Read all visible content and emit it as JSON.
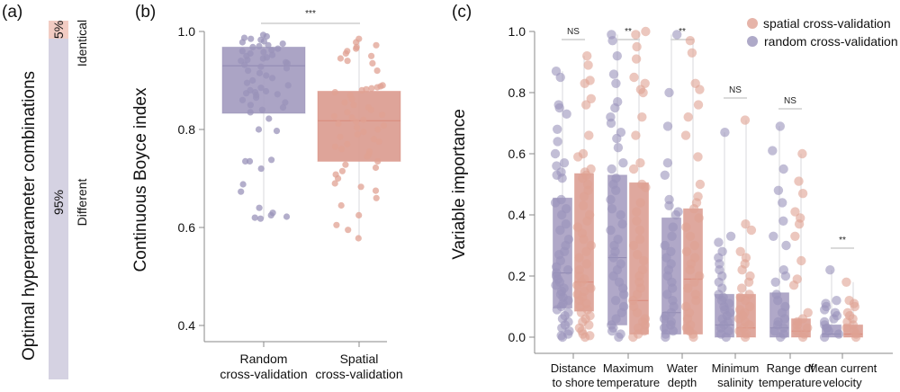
{
  "colors": {
    "random": "#8f87b0",
    "random_box": "#a79fc2",
    "random_point": "#9a93ba",
    "spatial": "#d9897a",
    "spatial_box": "#dc9f93",
    "spatial_point": "#e0a193",
    "bar_random": "#d5d2e2",
    "bar_spatial": "#f2ccc3"
  },
  "chart_data": [
    {
      "id": "a",
      "type": "bar",
      "panel_label": "(a)",
      "ylabel": "Optimal hyperparameter combinations",
      "orientation": "stacked-vertical",
      "segments": [
        {
          "name": "Identical",
          "value": 5,
          "label": "5%"
        },
        {
          "name": "Different",
          "value": 95,
          "label": "95%"
        }
      ]
    },
    {
      "id": "b",
      "type": "box",
      "panel_label": "(b)",
      "ylabel": "Continuous Boyce index",
      "ylim": [
        0.37,
        1.0
      ],
      "yticks": [
        1.0,
        0.8,
        0.6,
        0.4
      ],
      "ytick_labels": [
        "1.0",
        "0.8",
        "0.6",
        "0.4"
      ],
      "categories": [
        {
          "line1": "Random",
          "line2": "cross-validation"
        },
        {
          "line1": "Spatial",
          "line2": "cross-validation"
        }
      ],
      "significance": "***",
      "series": [
        {
          "name": "Random cross-validation",
          "q1": 0.833,
          "median": 0.93,
          "q3": 0.968,
          "whisker_low": 0.618,
          "whisker_high": 0.995,
          "points": [
            0.993,
            0.99,
            0.987,
            0.985,
            0.983,
            0.98,
            0.978,
            0.975,
            0.972,
            0.97,
            0.968,
            0.965,
            0.962,
            0.96,
            0.958,
            0.955,
            0.952,
            0.95,
            0.947,
            0.945,
            0.942,
            0.94,
            0.937,
            0.935,
            0.932,
            0.928,
            0.925,
            0.92,
            0.915,
            0.91,
            0.905,
            0.9,
            0.895,
            0.89,
            0.885,
            0.88,
            0.878,
            0.876,
            0.874,
            0.872,
            0.87,
            0.865,
            0.86,
            0.855,
            0.85,
            0.845,
            0.84,
            0.835,
            0.822,
            0.8,
            0.797,
            0.738,
            0.735,
            0.735,
            0.72,
            0.688,
            0.673,
            0.64,
            0.63,
            0.625,
            0.622,
            0.62,
            0.618
          ]
        },
        {
          "name": "Spatial cross-validation",
          "q1": 0.735,
          "median": 0.818,
          "q3": 0.878,
          "whisker_low": 0.578,
          "whisker_high": 0.985,
          "points": [
            0.985,
            0.978,
            0.972,
            0.968,
            0.965,
            0.96,
            0.955,
            0.95,
            0.945,
            0.94,
            0.935,
            0.92,
            0.89,
            0.888,
            0.886,
            0.884,
            0.882,
            0.88,
            0.876,
            0.87,
            0.862,
            0.855,
            0.85,
            0.845,
            0.84,
            0.835,
            0.83,
            0.827,
            0.824,
            0.82,
            0.816,
            0.812,
            0.808,
            0.804,
            0.8,
            0.795,
            0.79,
            0.785,
            0.78,
            0.775,
            0.77,
            0.765,
            0.76,
            0.755,
            0.75,
            0.745,
            0.735,
            0.728,
            0.722,
            0.715,
            0.708,
            0.7,
            0.69,
            0.683,
            0.675,
            0.66,
            0.645,
            0.625,
            0.605,
            0.595,
            0.578
          ]
        }
      ]
    },
    {
      "id": "c",
      "type": "box",
      "panel_label": "(c)",
      "ylabel": "Variable importance",
      "ylim": [
        -0.05,
        1.0
      ],
      "yticks": [
        1.0,
        0.8,
        0.6,
        0.4,
        0.2,
        0.0
      ],
      "ytick_labels": [
        "1.0",
        "0.8",
        "0.6",
        "0.4",
        "0.2",
        "0.0"
      ],
      "legend": {
        "position": "top-right",
        "entries": [
          "spatial cross-validation",
          "random cross-validation"
        ]
      },
      "categories": [
        {
          "line1": "Distance",
          "line2": "to shore",
          "significance": "NS",
          "random": {
            "q1": 0.095,
            "median": 0.21,
            "q3": 0.455,
            "whisker_high": 0.87,
            "points": [
              0.87,
              0.85,
              0.76,
              0.75,
              0.73,
              0.68,
              0.64,
              0.6,
              0.57,
              0.56,
              0.54,
              0.53,
              0.52,
              0.45,
              0.44,
              0.42,
              0.4,
              0.37,
              0.35,
              0.32,
              0.3,
              0.28,
              0.27,
              0.25,
              0.23,
              0.22,
              0.21,
              0.2,
              0.19,
              0.18,
              0.17,
              0.16,
              0.15,
              0.14,
              0.13,
              0.12,
              0.11,
              0.1,
              0.09,
              0.08,
              0.07,
              0.06,
              0.05,
              0.04,
              0.03,
              0.02,
              0.01,
              0.005,
              0.0
            ]
          },
          "spatial": {
            "q1": 0.085,
            "median": 0.18,
            "q3": 0.535,
            "whisker_high": 0.92,
            "points": [
              0.92,
              0.89,
              0.84,
              0.83,
              0.78,
              0.76,
              0.66,
              0.6,
              0.59,
              0.55,
              0.54,
              0.53,
              0.52,
              0.5,
              0.48,
              0.46,
              0.43,
              0.4,
              0.38,
              0.36,
              0.34,
              0.32,
              0.3,
              0.28,
              0.26,
              0.24,
              0.22,
              0.2,
              0.19,
              0.18,
              0.17,
              0.16,
              0.15,
              0.14,
              0.13,
              0.12,
              0.11,
              0.1,
              0.09,
              0.08,
              0.07,
              0.06,
              0.05,
              0.04,
              0.03,
              0.02,
              0.01,
              0.005,
              0.0
            ]
          }
        },
        {
          "line1": "Maximum",
          "line2": "temperature",
          "significance": "**",
          "random": {
            "q1": 0.04,
            "median": 0.26,
            "q3": 0.53,
            "whisker_high": 0.99,
            "points": [
              0.99,
              0.97,
              0.92,
              0.86,
              0.83,
              0.77,
              0.75,
              0.72,
              0.7,
              0.67,
              0.65,
              0.62,
              0.57,
              0.55,
              0.52,
              0.5,
              0.48,
              0.45,
              0.42,
              0.4,
              0.37,
              0.35,
              0.32,
              0.3,
              0.28,
              0.26,
              0.24,
              0.22,
              0.2,
              0.18,
              0.16,
              0.14,
              0.12,
              0.1,
              0.08,
              0.06,
              0.04,
              0.03,
              0.02,
              0.01,
              0.0
            ]
          },
          "spatial": {
            "q1": 0.01,
            "median": 0.12,
            "q3": 0.505,
            "whisker_high": 1.0,
            "points": [
              1.0,
              0.99,
              0.95,
              0.91,
              0.85,
              0.83,
              0.81,
              0.8,
              0.72,
              0.66,
              0.57,
              0.55,
              0.5,
              0.49,
              0.44,
              0.41,
              0.38,
              0.35,
              0.32,
              0.3,
              0.27,
              0.25,
              0.22,
              0.2,
              0.18,
              0.16,
              0.14,
              0.12,
              0.1,
              0.08,
              0.06,
              0.05,
              0.04,
              0.03,
              0.02,
              0.01,
              0.0
            ]
          }
        },
        {
          "line1": "Water",
          "line2": "depth",
          "significance": "**",
          "random": {
            "q1": 0.01,
            "median": 0.08,
            "q3": 0.39,
            "whisker_high": 0.99,
            "points": [
              0.99,
              0.8,
              0.69,
              0.57,
              0.53,
              0.45,
              0.43,
              0.41,
              0.4,
              0.36,
              0.33,
              0.3,
              0.28,
              0.26,
              0.24,
              0.22,
              0.2,
              0.18,
              0.16,
              0.14,
              0.12,
              0.1,
              0.08,
              0.07,
              0.06,
              0.05,
              0.04,
              0.03,
              0.02,
              0.01,
              0.0
            ]
          },
          "spatial": {
            "q1": 0.01,
            "median": 0.19,
            "q3": 0.42,
            "whisker_high": 0.97,
            "points": [
              0.97,
              0.93,
              0.83,
              0.81,
              0.76,
              0.72,
              0.66,
              0.59,
              0.5,
              0.46,
              0.44,
              0.42,
              0.39,
              0.36,
              0.33,
              0.3,
              0.28,
              0.26,
              0.24,
              0.22,
              0.2,
              0.18,
              0.16,
              0.14,
              0.12,
              0.1,
              0.08,
              0.06,
              0.04,
              0.03,
              0.02,
              0.01,
              0.0
            ]
          }
        },
        {
          "line1": "Minimum",
          "line2": "salinity",
          "significance": "NS",
          "random": {
            "q1": 0.0,
            "median": 0.04,
            "q3": 0.14,
            "whisker_high": 0.67,
            "points": [
              0.67,
              0.33,
              0.31,
              0.28,
              0.26,
              0.24,
              0.22,
              0.2,
              0.18,
              0.16,
              0.14,
              0.13,
              0.12,
              0.11,
              0.1,
              0.09,
              0.08,
              0.07,
              0.06,
              0.05,
              0.04,
              0.03,
              0.02,
              0.01,
              0.0
            ]
          },
          "spatial": {
            "q1": 0.0,
            "median": 0.03,
            "q3": 0.14,
            "whisker_high": 0.71,
            "points": [
              0.71,
              0.37,
              0.35,
              0.28,
              0.26,
              0.24,
              0.22,
              0.2,
              0.18,
              0.16,
              0.14,
              0.13,
              0.12,
              0.1,
              0.09,
              0.08,
              0.07,
              0.06,
              0.05,
              0.04,
              0.03,
              0.02,
              0.01,
              0.0
            ]
          }
        },
        {
          "line1": "Range of",
          "line2": "temperature",
          "significance": "NS",
          "random": {
            "q1": 0.0,
            "median": 0.03,
            "q3": 0.145,
            "whisker_high": 0.69,
            "points": [
              0.69,
              0.61,
              0.55,
              0.48,
              0.44,
              0.38,
              0.33,
              0.3,
              0.22,
              0.2,
              0.18,
              0.14,
              0.12,
              0.1,
              0.08,
              0.06,
              0.05,
              0.04,
              0.03,
              0.02,
              0.01,
              0.0
            ]
          },
          "spatial": {
            "q1": 0.0,
            "median": 0.02,
            "q3": 0.06,
            "whisker_high": 0.6,
            "points": [
              0.6,
              0.51,
              0.47,
              0.41,
              0.39,
              0.37,
              0.33,
              0.25,
              0.19,
              0.17,
              0.08,
              0.06,
              0.05,
              0.04,
              0.03,
              0.02,
              0.01,
              0.0
            ]
          }
        },
        {
          "line1": "Mean current",
          "line2": "velocity",
          "significance": "**",
          "random": {
            "q1": 0.0,
            "median": 0.01,
            "q3": 0.04,
            "whisker_high": 0.22,
            "points": [
              0.22,
              0.12,
              0.11,
              0.1,
              0.09,
              0.08,
              0.07,
              0.06,
              0.05,
              0.04,
              0.03,
              0.02,
              0.01,
              0.0
            ]
          },
          "spatial": {
            "q1": 0.0,
            "median": 0.01,
            "q3": 0.04,
            "whisker_high": 0.18,
            "points": [
              0.18,
              0.12,
              0.11,
              0.1,
              0.08,
              0.07,
              0.06,
              0.05,
              0.04,
              0.03,
              0.02,
              0.01,
              0.0
            ]
          }
        }
      ]
    }
  ]
}
